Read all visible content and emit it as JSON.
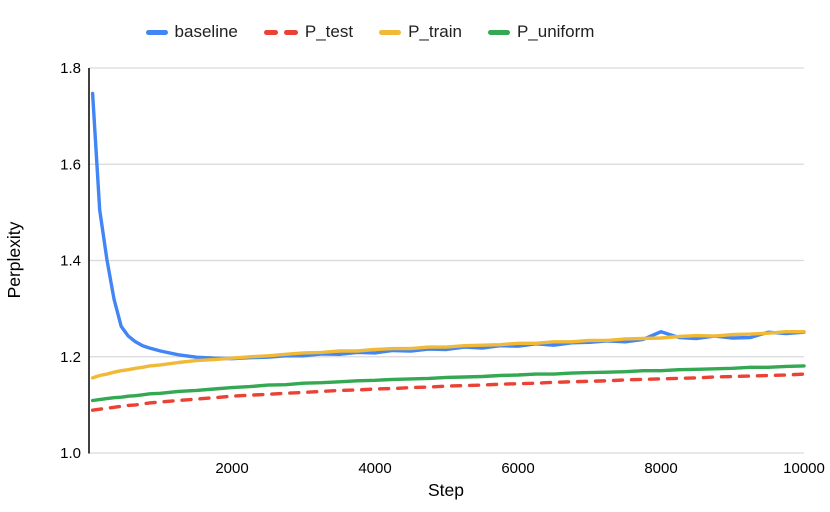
{
  "chart_data": {
    "type": "line",
    "title": "",
    "xlabel": "Step",
    "ylabel": "Perplexity",
    "xlim": [
      0,
      10000
    ],
    "ylim": [
      1.0,
      1.8
    ],
    "x_ticks": [
      2000,
      4000,
      6000,
      8000,
      10000
    ],
    "y_ticks": [
      1.0,
      1.2,
      1.4,
      1.6,
      1.8
    ],
    "grid": "horizontal-only",
    "legend_position": "top-center",
    "grid_color": "#d9d9d9",
    "axis_line_color": "#000000",
    "x": [
      50,
      150,
      250,
      350,
      450,
      550,
      650,
      750,
      850,
      1000,
      1250,
      1500,
      1750,
      2000,
      2250,
      2500,
      2750,
      3000,
      3250,
      3500,
      3750,
      4000,
      4250,
      4500,
      4750,
      5000,
      5250,
      5500,
      5750,
      6000,
      6250,
      6500,
      6750,
      7000,
      7250,
      7500,
      7750,
      8000,
      8250,
      8500,
      8750,
      9000,
      9250,
      9500,
      9750,
      10000
    ],
    "series": [
      {
        "name": "baseline",
        "color": "#4285F4",
        "style": "solid",
        "values": [
          1.747,
          1.505,
          1.402,
          1.32,
          1.263,
          1.243,
          1.231,
          1.223,
          1.218,
          1.212,
          1.204,
          1.199,
          1.197,
          1.196,
          1.198,
          1.199,
          1.202,
          1.202,
          1.206,
          1.205,
          1.209,
          1.208,
          1.213,
          1.212,
          1.216,
          1.215,
          1.22,
          1.218,
          1.223,
          1.222,
          1.227,
          1.224,
          1.229,
          1.23,
          1.233,
          1.231,
          1.236,
          1.252,
          1.24,
          1.238,
          1.243,
          1.239,
          1.24,
          1.251,
          1.248,
          1.251
        ]
      },
      {
        "name": "P_test",
        "color": "#EA4335",
        "style": "dashed",
        "values": [
          1.089,
          1.091,
          1.093,
          1.095,
          1.097,
          1.099,
          1.1,
          1.102,
          1.104,
          1.106,
          1.109,
          1.112,
          1.115,
          1.118,
          1.12,
          1.122,
          1.124,
          1.126,
          1.128,
          1.13,
          1.131,
          1.133,
          1.134,
          1.136,
          1.137,
          1.139,
          1.14,
          1.141,
          1.143,
          1.144,
          1.145,
          1.147,
          1.148,
          1.149,
          1.15,
          1.152,
          1.153,
          1.154,
          1.155,
          1.156,
          1.158,
          1.159,
          1.16,
          1.161,
          1.162,
          1.164
        ]
      },
      {
        "name": "P_train",
        "color": "#F0B937",
        "style": "solid",
        "values": [
          1.156,
          1.161,
          1.164,
          1.168,
          1.171,
          1.173,
          1.176,
          1.178,
          1.181,
          1.183,
          1.188,
          1.192,
          1.194,
          1.197,
          1.2,
          1.202,
          1.205,
          1.208,
          1.209,
          1.212,
          1.212,
          1.215,
          1.217,
          1.217,
          1.22,
          1.22,
          1.223,
          1.224,
          1.225,
          1.228,
          1.228,
          1.231,
          1.231,
          1.234,
          1.234,
          1.237,
          1.238,
          1.239,
          1.242,
          1.244,
          1.243,
          1.246,
          1.247,
          1.249,
          1.252,
          1.252
        ]
      },
      {
        "name": "P_uniform",
        "color": "#34A853",
        "style": "solid",
        "values": [
          1.109,
          1.111,
          1.113,
          1.115,
          1.116,
          1.118,
          1.119,
          1.121,
          1.123,
          1.124,
          1.128,
          1.13,
          1.133,
          1.136,
          1.138,
          1.141,
          1.142,
          1.145,
          1.146,
          1.148,
          1.15,
          1.151,
          1.153,
          1.154,
          1.155,
          1.157,
          1.158,
          1.159,
          1.161,
          1.162,
          1.164,
          1.164,
          1.166,
          1.167,
          1.168,
          1.169,
          1.171,
          1.171,
          1.173,
          1.174,
          1.175,
          1.176,
          1.178,
          1.178,
          1.18,
          1.181
        ]
      }
    ]
  }
}
